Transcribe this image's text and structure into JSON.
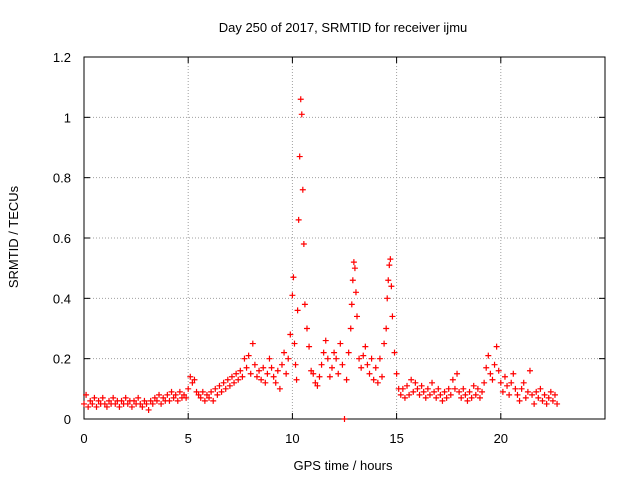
{
  "chart_data": {
    "type": "scatter",
    "title": "Day 250 of 2017, SRMTID for receiver ijmu",
    "xlabel": "GPS time / hours",
    "ylabel": "SRMTID / TECUs",
    "xlim": [
      0,
      25
    ],
    "ylim": [
      0,
      1.2
    ],
    "xticks": [
      0,
      5,
      10,
      15,
      20
    ],
    "xtick_labels": [
      "0",
      "5",
      "10",
      "15",
      "20"
    ],
    "yticks": [
      0,
      0.2,
      0.4,
      0.6,
      0.8,
      1.0,
      1.2
    ],
    "ytick_labels": [
      "0",
      "0.2",
      "0.4",
      "0.6",
      "0.8",
      "1",
      "1.2"
    ],
    "grid": true,
    "marker": "+",
    "marker_color": "#ff0000",
    "series": [
      {
        "name": "SRMTID",
        "points": [
          [
            0.0,
            0.05
          ],
          [
            0.1,
            0.08
          ],
          [
            0.2,
            0.04
          ],
          [
            0.3,
            0.06
          ],
          [
            0.4,
            0.05
          ],
          [
            0.5,
            0.07
          ],
          [
            0.6,
            0.04
          ],
          [
            0.7,
            0.06
          ],
          [
            0.8,
            0.05
          ],
          [
            0.9,
            0.07
          ],
          [
            1.0,
            0.05
          ],
          [
            1.1,
            0.04
          ],
          [
            1.2,
            0.06
          ],
          [
            1.3,
            0.05
          ],
          [
            1.4,
            0.07
          ],
          [
            1.5,
            0.05
          ],
          [
            1.6,
            0.06
          ],
          [
            1.7,
            0.04
          ],
          [
            1.8,
            0.06
          ],
          [
            1.9,
            0.05
          ],
          [
            2.0,
            0.07
          ],
          [
            2.1,
            0.05
          ],
          [
            2.2,
            0.06
          ],
          [
            2.3,
            0.04
          ],
          [
            2.4,
            0.06
          ],
          [
            2.5,
            0.05
          ],
          [
            2.6,
            0.07
          ],
          [
            2.7,
            0.05
          ],
          [
            2.8,
            0.04
          ],
          [
            2.9,
            0.06
          ],
          [
            3.0,
            0.05
          ],
          [
            3.1,
            0.03
          ],
          [
            3.2,
            0.06
          ],
          [
            3.3,
            0.05
          ],
          [
            3.4,
            0.07
          ],
          [
            3.5,
            0.06
          ],
          [
            3.6,
            0.08
          ],
          [
            3.7,
            0.05
          ],
          [
            3.8,
            0.07
          ],
          [
            3.9,
            0.06
          ],
          [
            4.0,
            0.08
          ],
          [
            4.1,
            0.06
          ],
          [
            4.2,
            0.09
          ],
          [
            4.3,
            0.07
          ],
          [
            4.4,
            0.08
          ],
          [
            4.5,
            0.06
          ],
          [
            4.6,
            0.09
          ],
          [
            4.7,
            0.07
          ],
          [
            4.8,
            0.08
          ],
          [
            4.9,
            0.07
          ],
          [
            5.0,
            0.1
          ],
          [
            5.1,
            0.14
          ],
          [
            5.2,
            0.12
          ],
          [
            5.3,
            0.13
          ],
          [
            5.4,
            0.09
          ],
          [
            5.5,
            0.08
          ],
          [
            5.6,
            0.07
          ],
          [
            5.7,
            0.09
          ],
          [
            5.8,
            0.06
          ],
          [
            5.9,
            0.08
          ],
          [
            6.0,
            0.07
          ],
          [
            6.1,
            0.09
          ],
          [
            6.2,
            0.06
          ],
          [
            6.3,
            0.1
          ],
          [
            6.4,
            0.08
          ],
          [
            6.5,
            0.11
          ],
          [
            6.6,
            0.09
          ],
          [
            6.7,
            0.12
          ],
          [
            6.8,
            0.1
          ],
          [
            6.9,
            0.13
          ],
          [
            7.0,
            0.11
          ],
          [
            7.1,
            0.14
          ],
          [
            7.2,
            0.12
          ],
          [
            7.3,
            0.15
          ],
          [
            7.4,
            0.13
          ],
          [
            7.5,
            0.16
          ],
          [
            7.6,
            0.14
          ],
          [
            7.7,
            0.2
          ],
          [
            7.8,
            0.17
          ],
          [
            7.9,
            0.21
          ],
          [
            8.0,
            0.15
          ],
          [
            8.1,
            0.25
          ],
          [
            8.2,
            0.18
          ],
          [
            8.3,
            0.14
          ],
          [
            8.4,
            0.16
          ],
          [
            8.5,
            0.13
          ],
          [
            8.6,
            0.17
          ],
          [
            8.7,
            0.12
          ],
          [
            8.8,
            0.15
          ],
          [
            8.9,
            0.2
          ],
          [
            9.0,
            0.17
          ],
          [
            9.1,
            0.14
          ],
          [
            9.2,
            0.12
          ],
          [
            9.3,
            0.16
          ],
          [
            9.4,
            0.1
          ],
          [
            9.5,
            0.18
          ],
          [
            9.6,
            0.22
          ],
          [
            9.7,
            0.15
          ],
          [
            9.8,
            0.2
          ],
          [
            9.9,
            0.28
          ],
          [
            10.0,
            0.41
          ],
          [
            10.05,
            0.47
          ],
          [
            10.1,
            0.25
          ],
          [
            10.15,
            0.18
          ],
          [
            10.2,
            0.13
          ],
          [
            10.25,
            0.36
          ],
          [
            10.3,
            0.66
          ],
          [
            10.35,
            0.87
          ],
          [
            10.4,
            1.06
          ],
          [
            10.45,
            1.01
          ],
          [
            10.5,
            0.76
          ],
          [
            10.55,
            0.58
          ],
          [
            10.6,
            0.38
          ],
          [
            10.7,
            0.3
          ],
          [
            10.8,
            0.24
          ],
          [
            10.9,
            0.16
          ],
          [
            11.0,
            0.15
          ],
          [
            11.1,
            0.12
          ],
          [
            11.2,
            0.11
          ],
          [
            11.3,
            0.14
          ],
          [
            11.4,
            0.18
          ],
          [
            11.5,
            0.22
          ],
          [
            11.6,
            0.26
          ],
          [
            11.7,
            0.2
          ],
          [
            11.8,
            0.14
          ],
          [
            11.9,
            0.17
          ],
          [
            12.0,
            0.22
          ],
          [
            12.1,
            0.2
          ],
          [
            12.2,
            0.15
          ],
          [
            12.3,
            0.25
          ],
          [
            12.4,
            0.18
          ],
          [
            12.5,
            0.0
          ],
          [
            12.6,
            0.13
          ],
          [
            12.7,
            0.22
          ],
          [
            12.8,
            0.3
          ],
          [
            12.85,
            0.38
          ],
          [
            12.9,
            0.46
          ],
          [
            12.95,
            0.52
          ],
          [
            13.0,
            0.5
          ],
          [
            13.05,
            0.42
          ],
          [
            13.1,
            0.34
          ],
          [
            13.2,
            0.2
          ],
          [
            13.3,
            0.17
          ],
          [
            13.4,
            0.21
          ],
          [
            13.5,
            0.24
          ],
          [
            13.6,
            0.18
          ],
          [
            13.7,
            0.15
          ],
          [
            13.8,
            0.2
          ],
          [
            13.9,
            0.13
          ],
          [
            14.0,
            0.17
          ],
          [
            14.1,
            0.12
          ],
          [
            14.2,
            0.2
          ],
          [
            14.3,
            0.14
          ],
          [
            14.4,
            0.25
          ],
          [
            14.5,
            0.3
          ],
          [
            14.55,
            0.4
          ],
          [
            14.6,
            0.46
          ],
          [
            14.65,
            0.51
          ],
          [
            14.7,
            0.53
          ],
          [
            14.75,
            0.44
          ],
          [
            14.8,
            0.34
          ],
          [
            14.9,
            0.22
          ],
          [
            15.0,
            0.15
          ],
          [
            15.1,
            0.1
          ],
          [
            15.2,
            0.08
          ],
          [
            15.3,
            0.1
          ],
          [
            15.4,
            0.07
          ],
          [
            15.5,
            0.11
          ],
          [
            15.6,
            0.08
          ],
          [
            15.7,
            0.13
          ],
          [
            15.8,
            0.09
          ],
          [
            15.9,
            0.12
          ],
          [
            16.0,
            0.1
          ],
          [
            16.1,
            0.08
          ],
          [
            16.2,
            0.11
          ],
          [
            16.3,
            0.09
          ],
          [
            16.4,
            0.07
          ],
          [
            16.5,
            0.1
          ],
          [
            16.6,
            0.08
          ],
          [
            16.7,
            0.12
          ],
          [
            16.8,
            0.09
          ],
          [
            16.9,
            0.07
          ],
          [
            17.0,
            0.1
          ],
          [
            17.1,
            0.08
          ],
          [
            17.2,
            0.06
          ],
          [
            17.3,
            0.09
          ],
          [
            17.4,
            0.07
          ],
          [
            17.5,
            0.1
          ],
          [
            17.6,
            0.08
          ],
          [
            17.7,
            0.13
          ],
          [
            17.8,
            0.1
          ],
          [
            17.9,
            0.15
          ],
          [
            18.0,
            0.09
          ],
          [
            18.1,
            0.07
          ],
          [
            18.2,
            0.1
          ],
          [
            18.3,
            0.08
          ],
          [
            18.4,
            0.06
          ],
          [
            18.5,
            0.09
          ],
          [
            18.6,
            0.07
          ],
          [
            18.7,
            0.11
          ],
          [
            18.8,
            0.08
          ],
          [
            18.9,
            0.1
          ],
          [
            19.0,
            0.07
          ],
          [
            19.1,
            0.09
          ],
          [
            19.2,
            0.12
          ],
          [
            19.3,
            0.17
          ],
          [
            19.4,
            0.21
          ],
          [
            19.5,
            0.15
          ],
          [
            19.6,
            0.13
          ],
          [
            19.7,
            0.18
          ],
          [
            19.8,
            0.24
          ],
          [
            19.9,
            0.16
          ],
          [
            20.0,
            0.12
          ],
          [
            20.1,
            0.09
          ],
          [
            20.2,
            0.14
          ],
          [
            20.3,
            0.11
          ],
          [
            20.4,
            0.08
          ],
          [
            20.5,
            0.12
          ],
          [
            20.6,
            0.15
          ],
          [
            20.7,
            0.1
          ],
          [
            20.8,
            0.08
          ],
          [
            20.9,
            0.06
          ],
          [
            21.0,
            0.1
          ],
          [
            21.1,
            0.12
          ],
          [
            21.2,
            0.07
          ],
          [
            21.3,
            0.09
          ],
          [
            21.4,
            0.16
          ],
          [
            21.5,
            0.08
          ],
          [
            21.6,
            0.05
          ],
          [
            21.7,
            0.09
          ],
          [
            21.8,
            0.07
          ],
          [
            21.9,
            0.1
          ],
          [
            22.0,
            0.06
          ],
          [
            22.1,
            0.08
          ],
          [
            22.2,
            0.05
          ],
          [
            22.3,
            0.07
          ],
          [
            22.4,
            0.09
          ],
          [
            22.5,
            0.06
          ],
          [
            22.6,
            0.08
          ],
          [
            22.7,
            0.05
          ]
        ]
      }
    ]
  }
}
